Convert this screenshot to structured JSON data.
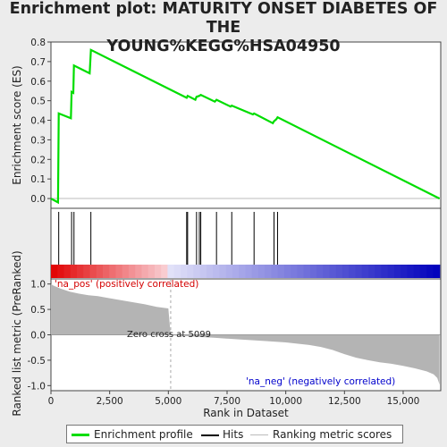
{
  "title_line1": "Enrichment plot: MATURITY ONSET DIABETES OF THE",
  "title_line2": "YOUNG%KEGG%HSA04950",
  "chart_data": {
    "type": "line",
    "top_panel": {
      "ylabel": "Enrichment score (ES)",
      "ylim": [
        -0.05,
        0.8
      ],
      "yticks": [
        "0.0",
        "0.1",
        "0.2",
        "0.3",
        "0.4",
        "0.5",
        "0.6",
        "0.7",
        "0.8"
      ],
      "series": [
        {
          "name": "Enrichment profile",
          "color": "#00dd00",
          "x": [
            0,
            300,
            330,
            850,
            880,
            950,
            980,
            1650,
            1700,
            5780,
            5820,
            6150,
            6200,
            6320,
            6380,
            6980,
            7050,
            7650,
            7700,
            8600,
            8650,
            9450,
            9500,
            9600,
            9650,
            16550
          ],
          "y": [
            0.0,
            -0.02,
            0.435,
            0.41,
            0.545,
            0.54,
            0.68,
            0.64,
            0.76,
            0.515,
            0.525,
            0.505,
            0.52,
            0.525,
            0.53,
            0.495,
            0.505,
            0.47,
            0.475,
            0.43,
            0.435,
            0.385,
            0.395,
            0.405,
            0.415,
            0.0
          ]
        }
      ]
    },
    "hits": {
      "color": "#000000",
      "x": [
        330,
        880,
        980,
        1700,
        5780,
        5820,
        6200,
        6320,
        6380,
        7050,
        7700,
        8650,
        9500,
        9650
      ]
    },
    "bottom_panel": {
      "ylabel": "Ranked list metric (PreRanked)",
      "xlabel": "Rank in Dataset",
      "ylim": [
        -1.1,
        1.1
      ],
      "yticks": [
        "-1.0",
        "-0.5",
        "0.0",
        "0.5",
        "1.0"
      ],
      "xticks": [
        "0",
        "2,500",
        "5,000",
        "7,500",
        "10,000",
        "12,500",
        "15,000"
      ],
      "xlim": [
        0,
        16600
      ],
      "n_genes": 16550,
      "zero_cross": 5099,
      "zero_cross_label": "Zero cross at 5099",
      "pos_label": "'na_pos' (positively correlated)",
      "neg_label": "'na_neg' (negatively correlated)",
      "metric_profile": {
        "rank": [
          0,
          100,
          400,
          800,
          1200,
          1600,
          2000,
          2500,
          3000,
          3500,
          4000,
          4500,
          5000,
          5099,
          5200,
          7000,
          8000,
          9000,
          10000,
          11000,
          11500,
          12000,
          12500,
          13000,
          13500,
          14000,
          14500,
          15000,
          15500,
          16000,
          16300,
          16450,
          16550
        ],
        "value": [
          1.0,
          0.97,
          0.91,
          0.85,
          0.81,
          0.78,
          0.76,
          0.72,
          0.68,
          0.64,
          0.6,
          0.55,
          0.52,
          0.0,
          -0.01,
          -0.06,
          -0.09,
          -0.12,
          -0.15,
          -0.2,
          -0.24,
          -0.3,
          -0.38,
          -0.45,
          -0.5,
          -0.54,
          -0.57,
          -0.61,
          -0.66,
          -0.72,
          -0.78,
          -0.85,
          -0.98
        ]
      }
    },
    "legend": {
      "entries": [
        "Enrichment profile",
        "Hits",
        "Ranking metric scores"
      ],
      "colors": [
        "#00dd00",
        "#000000",
        "#bbbbbb"
      ]
    }
  }
}
